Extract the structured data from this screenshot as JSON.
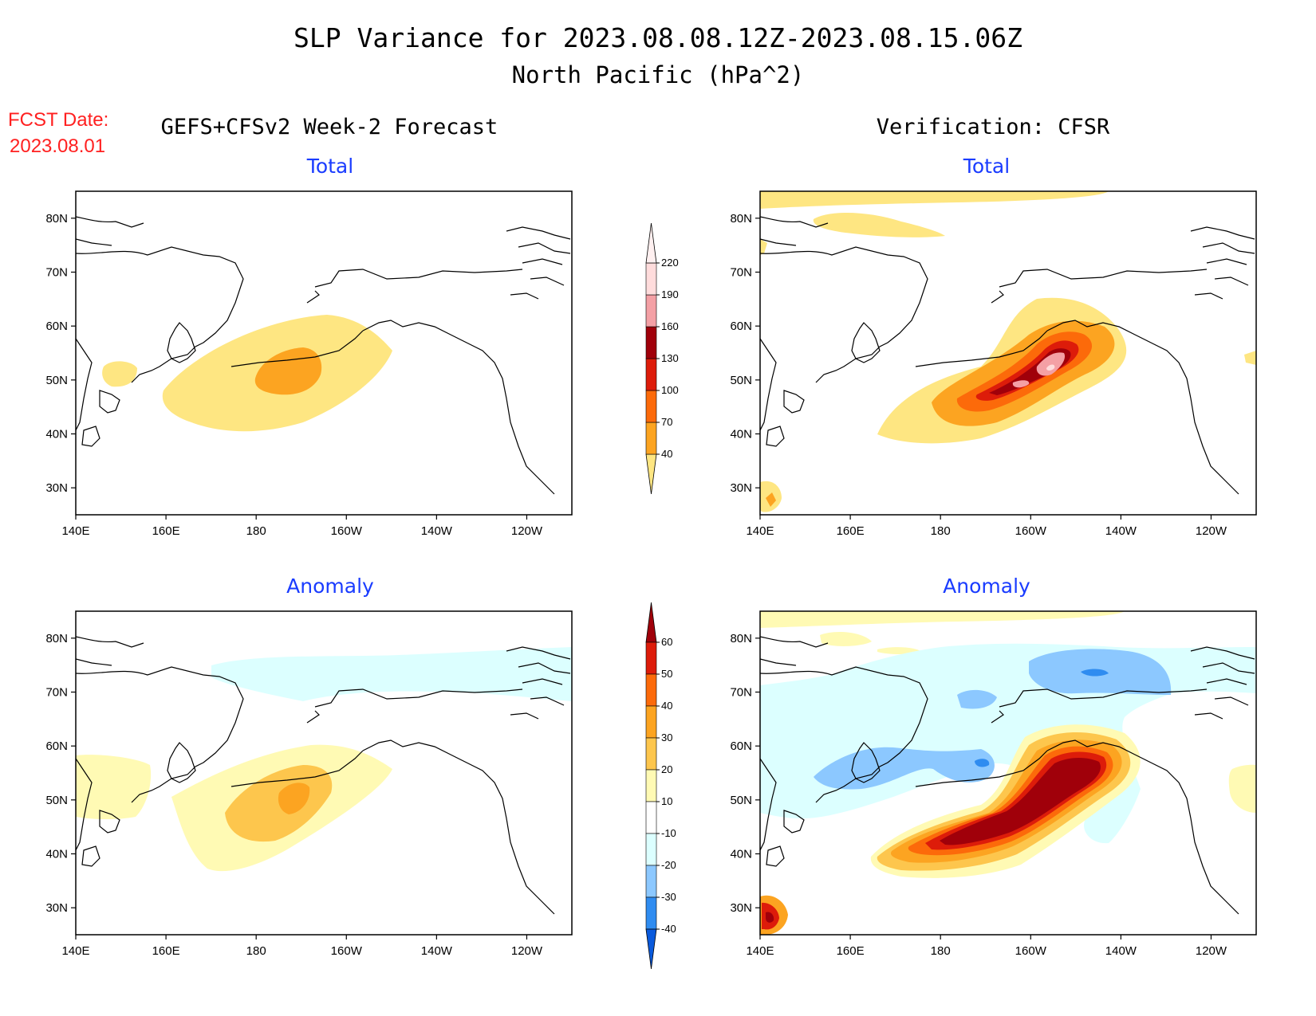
{
  "title": {
    "line1": "SLP Variance for 2023.08.08.12Z-2023.08.15.06Z",
    "line2": "North Pacific (hPa^2)"
  },
  "forecast_date": {
    "label": "FCST Date:",
    "value": "2023.08.01",
    "color": "#ff2020"
  },
  "columns": {
    "left": "GEFS+CFSv2 Week-2 Forecast",
    "right": "Verification: CFSR"
  },
  "panels": {
    "top_left": "Total",
    "top_right": "Total",
    "bottom_left": "Anomaly",
    "bottom_right": "Anomaly",
    "subtitle_color": "#1a3cff"
  },
  "axes": {
    "lat_labels": [
      "80N",
      "70N",
      "60N",
      "50N",
      "40N",
      "30N"
    ],
    "lat_values": [
      80,
      70,
      60,
      50,
      40,
      30
    ],
    "lon_labels": [
      "140E",
      "160E",
      "180",
      "160W",
      "140W",
      "120W"
    ],
    "lon_values": [
      140,
      160,
      180,
      200,
      220,
      240
    ],
    "lat_range": [
      25,
      85
    ],
    "lon_range": [
      140,
      250
    ]
  },
  "colorbars": {
    "total": {
      "levels": [
        "40",
        "70",
        "100",
        "130",
        "160",
        "190",
        "220"
      ],
      "colors": [
        "#fee682",
        "#fca421",
        "#fc6a0a",
        "#dd1c0a",
        "#a0000a",
        "#f4a0a5",
        "#ffdcdc",
        "#fff0f0"
      ]
    },
    "anomaly": {
      "levels": [
        "60",
        "50",
        "40",
        "30",
        "20",
        "10",
        "-10",
        "-20",
        "-30",
        "-40"
      ],
      "colors": [
        "#a0000a",
        "#dd1c0a",
        "#fc6a0a",
        "#fca421",
        "#fdc64d",
        "#fffab4",
        "#ffffff",
        "#dcffff",
        "#8cc8ff",
        "#2f8cf0",
        "#0a5adc"
      ]
    }
  }
}
